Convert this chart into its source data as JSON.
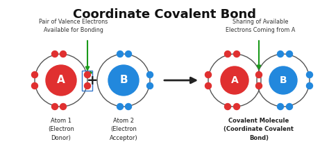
{
  "title": "Coordinate Covalent Bond",
  "title_fontsize": 13,
  "title_fontweight": "bold",
  "bg_color": "#ffffff",
  "atom_A_color": "#e03030",
  "atom_B_color": "#2288dd",
  "orbit_color": "#555555",
  "electron_red": "#e03030",
  "electron_blue": "#2288dd",
  "arrow_color": "#222222",
  "green_color": "#1a9a1a",
  "annotation_top_left": "Pair of Valence Electrons\nAvailable for Bonding",
  "annotation_top_right": "Sharing of Available\nElectrons Coming from A",
  "label_atom1": "Atom 1\n(Electron\nDonor)",
  "label_atom2": "Atom 2\n(Electron\nAcceptor)",
  "label_molecule": "Covalent Molecule\n(Coordinate Covalent\nBond)"
}
